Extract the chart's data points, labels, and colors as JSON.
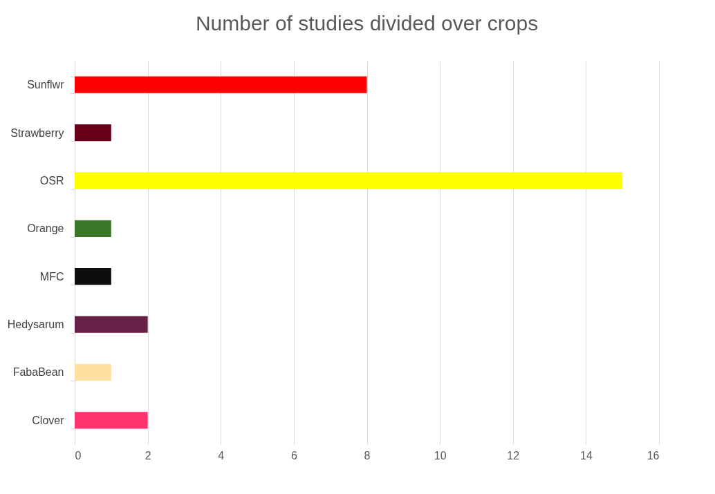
{
  "chart_data": {
    "type": "bar",
    "orientation": "horizontal",
    "title": "Number of studies divided over crops",
    "categories": [
      "Sunflwr",
      "Strawberry",
      "OSR",
      "Orange",
      "MFC",
      "Hedysarum",
      "FabaBean",
      "Clover"
    ],
    "values": [
      8,
      1,
      15,
      1,
      1,
      2,
      1,
      2
    ],
    "colors": [
      "#ff0000",
      "#660018",
      "#ffff00",
      "#3a7728",
      "#0d0d0d",
      "#662249",
      "#ffe0a0",
      "#ff3370"
    ],
    "xlim": [
      0,
      16
    ],
    "xticks": [
      0,
      2,
      4,
      6,
      8,
      10,
      12,
      14,
      16
    ],
    "grid": "x",
    "legend": false
  }
}
